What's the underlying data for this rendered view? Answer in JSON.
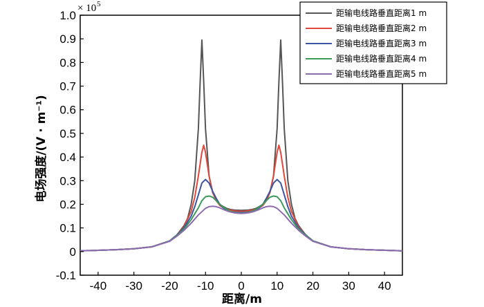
{
  "chart_data": {
    "type": "line",
    "xlabel": "距离/m",
    "ylabel": "电场强度/(V · m⁻¹)",
    "y_scale_label": "× 10",
    "y_scale_exponent": "5",
    "xlim": [
      -45,
      45
    ],
    "ylim": [
      -0.1,
      1.0
    ],
    "xticks": [
      -40,
      -30,
      -20,
      -10,
      0,
      10,
      20,
      30,
      40
    ],
    "yticks": [
      -0.1,
      0,
      0.1,
      0.2,
      0.3,
      0.4,
      0.5,
      0.6,
      0.7,
      0.8,
      0.9,
      1.0
    ],
    "ytick_labels": [
      "-0.1",
      "0",
      "0.1",
      "0.2",
      "0.3",
      "0.4",
      "0.5",
      "0.6",
      "0.7",
      "0.8",
      "0.9",
      "1.0"
    ],
    "grid": false,
    "legend_position": "top-right",
    "series": [
      {
        "name": "距输电线路垂直距离1 m",
        "color": "#555555",
        "x": [
          -45,
          -35,
          -30,
          -25,
          -20,
          -18,
          -16,
          -15,
          -14,
          -13,
          -12,
          -11.5,
          -11,
          -10.5,
          -10,
          -9,
          -8,
          -7,
          -6,
          -5,
          -4,
          -3,
          -2,
          -1,
          0,
          1,
          2,
          3,
          4,
          5,
          6,
          7,
          8,
          9,
          10,
          10.5,
          11,
          11.5,
          12,
          13,
          14,
          15,
          16,
          18,
          20,
          25,
          30,
          35,
          45
        ],
        "y": [
          0.003,
          0.008,
          0.012,
          0.02,
          0.045,
          0.07,
          0.11,
          0.14,
          0.2,
          0.3,
          0.52,
          0.72,
          0.895,
          0.72,
          0.52,
          0.32,
          0.25,
          0.22,
          0.2,
          0.19,
          0.182,
          0.178,
          0.176,
          0.175,
          0.174,
          0.175,
          0.176,
          0.178,
          0.182,
          0.19,
          0.2,
          0.22,
          0.25,
          0.32,
          0.52,
          0.72,
          0.895,
          0.72,
          0.52,
          0.3,
          0.2,
          0.14,
          0.11,
          0.07,
          0.045,
          0.02,
          0.012,
          0.008,
          0.003
        ]
      },
      {
        "name": "距输电线路垂直距离2 m",
        "color": "#e0473a",
        "x": [
          -45,
          -35,
          -30,
          -25,
          -20,
          -18,
          -16,
          -14,
          -13,
          -12,
          -11,
          -10.5,
          -10,
          -9,
          -8,
          -7,
          -6,
          -5,
          -4,
          -3,
          -2,
          -1,
          0,
          1,
          2,
          3,
          4,
          5,
          6,
          7,
          8,
          9,
          10,
          10.5,
          11,
          12,
          13,
          14,
          16,
          18,
          20,
          25,
          30,
          35,
          45
        ],
        "y": [
          0.003,
          0.008,
          0.012,
          0.02,
          0.045,
          0.07,
          0.105,
          0.17,
          0.23,
          0.32,
          0.42,
          0.45,
          0.42,
          0.32,
          0.25,
          0.215,
          0.195,
          0.185,
          0.178,
          0.175,
          0.172,
          0.171,
          0.17,
          0.171,
          0.172,
          0.175,
          0.178,
          0.185,
          0.195,
          0.215,
          0.25,
          0.32,
          0.42,
          0.45,
          0.42,
          0.32,
          0.23,
          0.17,
          0.105,
          0.07,
          0.045,
          0.02,
          0.012,
          0.008,
          0.003
        ]
      },
      {
        "name": "距输电线路垂直距离3 m",
        "color": "#3a56a0",
        "x": [
          -45,
          -35,
          -30,
          -25,
          -20,
          -18,
          -16,
          -14,
          -13,
          -12,
          -11,
          -10,
          -9,
          -8,
          -7,
          -6,
          -5,
          -4,
          -3,
          -2,
          -1,
          0,
          1,
          2,
          3,
          4,
          5,
          6,
          7,
          8,
          9,
          10,
          11,
          12,
          13,
          14,
          16,
          18,
          20,
          25,
          30,
          35,
          45
        ],
        "y": [
          0.003,
          0.008,
          0.012,
          0.02,
          0.045,
          0.07,
          0.1,
          0.15,
          0.19,
          0.24,
          0.29,
          0.305,
          0.29,
          0.255,
          0.225,
          0.2,
          0.185,
          0.176,
          0.17,
          0.167,
          0.166,
          0.165,
          0.166,
          0.167,
          0.17,
          0.176,
          0.185,
          0.2,
          0.225,
          0.255,
          0.29,
          0.305,
          0.29,
          0.24,
          0.19,
          0.15,
          0.1,
          0.07,
          0.045,
          0.02,
          0.012,
          0.008,
          0.003
        ]
      },
      {
        "name": "距输电线路垂直距离4 m",
        "color": "#3b9a5a",
        "x": [
          -45,
          -35,
          -30,
          -25,
          -20,
          -18,
          -16,
          -14,
          -12,
          -11,
          -10,
          -9,
          -8,
          -7,
          -6,
          -5,
          -4,
          -3,
          -2,
          -1,
          0,
          1,
          2,
          3,
          4,
          5,
          6,
          7,
          8,
          9,
          10,
          11,
          12,
          14,
          16,
          18,
          20,
          25,
          30,
          35,
          45
        ],
        "y": [
          0.003,
          0.008,
          0.012,
          0.02,
          0.045,
          0.068,
          0.095,
          0.135,
          0.185,
          0.215,
          0.232,
          0.235,
          0.23,
          0.215,
          0.2,
          0.188,
          0.178,
          0.17,
          0.166,
          0.164,
          0.163,
          0.164,
          0.166,
          0.17,
          0.178,
          0.188,
          0.2,
          0.215,
          0.23,
          0.235,
          0.232,
          0.215,
          0.185,
          0.135,
          0.095,
          0.068,
          0.045,
          0.02,
          0.012,
          0.008,
          0.003
        ]
      },
      {
        "name": "距输电线路垂直距离5 m",
        "color": "#8e6ab0",
        "x": [
          -45,
          -35,
          -30,
          -25,
          -20,
          -18,
          -16,
          -14,
          -12,
          -10,
          -9,
          -8,
          -7,
          -6,
          -5,
          -4,
          -3,
          -2,
          -1,
          0,
          1,
          2,
          3,
          4,
          5,
          6,
          7,
          8,
          9,
          10,
          12,
          14,
          16,
          18,
          20,
          25,
          30,
          35,
          45
        ],
        "y": [
          0.003,
          0.008,
          0.012,
          0.02,
          0.043,
          0.065,
          0.09,
          0.12,
          0.155,
          0.183,
          0.19,
          0.192,
          0.19,
          0.185,
          0.178,
          0.172,
          0.167,
          0.164,
          0.162,
          0.161,
          0.162,
          0.164,
          0.167,
          0.172,
          0.178,
          0.185,
          0.19,
          0.192,
          0.19,
          0.183,
          0.155,
          0.12,
          0.09,
          0.065,
          0.043,
          0.02,
          0.012,
          0.008,
          0.003
        ]
      }
    ]
  }
}
